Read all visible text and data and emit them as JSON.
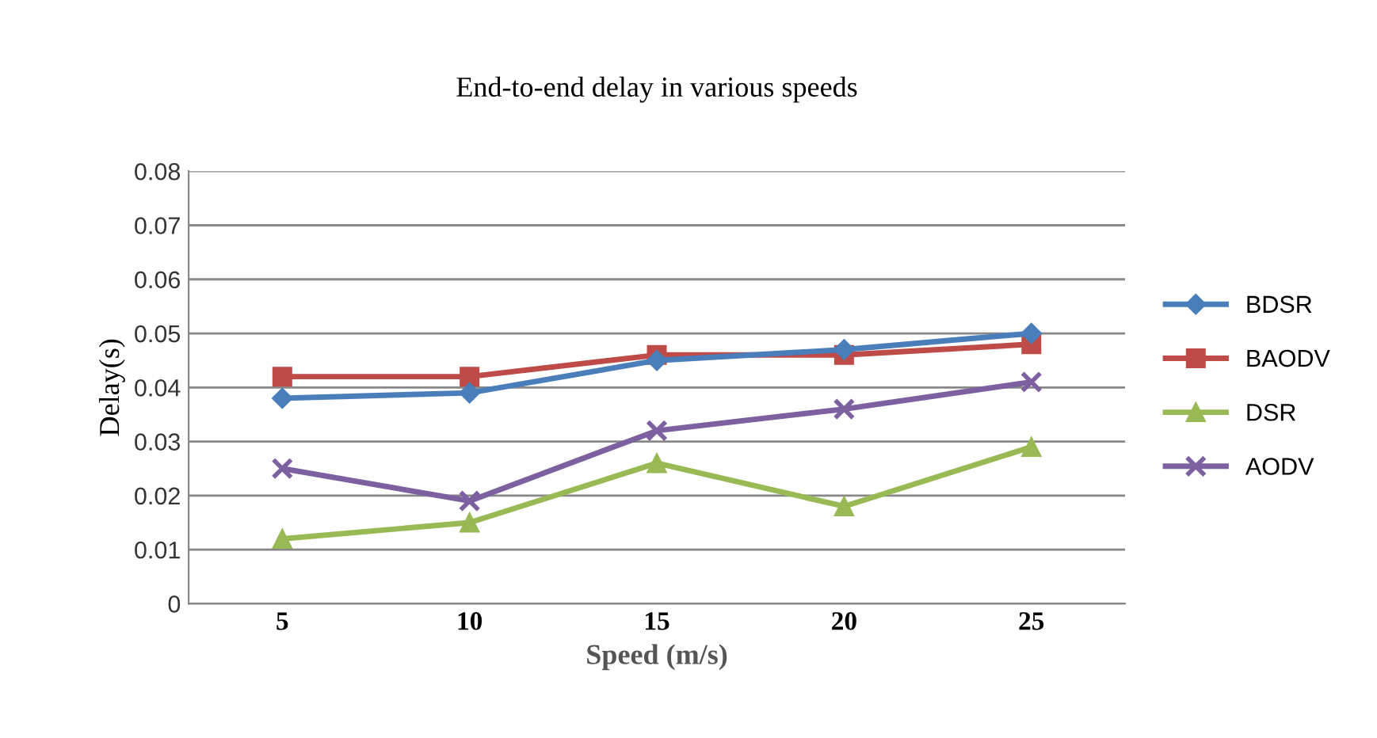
{
  "chart_data": {
    "type": "line",
    "title": "End-to-end delay in various speeds",
    "xlabel": "Speed (m/s)",
    "ylabel": "Delay(s)",
    "categories": [
      "5",
      "10",
      "15",
      "20",
      "25"
    ],
    "series": [
      {
        "name": "BDSR",
        "color": "#4a7ebb",
        "marker": "diamond",
        "values": [
          0.038,
          0.039,
          0.045,
          0.047,
          0.05
        ]
      },
      {
        "name": "BAODV",
        "color": "#be4b48",
        "marker": "square",
        "values": [
          0.042,
          0.042,
          0.046,
          0.046,
          0.048
        ]
      },
      {
        "name": "DSR",
        "color": "#98b954",
        "marker": "triangle",
        "values": [
          0.012,
          0.015,
          0.026,
          0.018,
          0.029
        ]
      },
      {
        "name": "AODV",
        "color": "#7d60a0",
        "marker": "cross",
        "values": [
          0.025,
          0.019,
          0.032,
          0.036,
          0.041
        ]
      }
    ],
    "ylim": [
      0,
      0.08
    ],
    "yticks": [
      {
        "value": 0,
        "label": "0"
      },
      0.01,
      0.02,
      0.03,
      0.04,
      0.05,
      0.06,
      0.07,
      0.08
    ],
    "grid": "y",
    "legend": "right"
  }
}
